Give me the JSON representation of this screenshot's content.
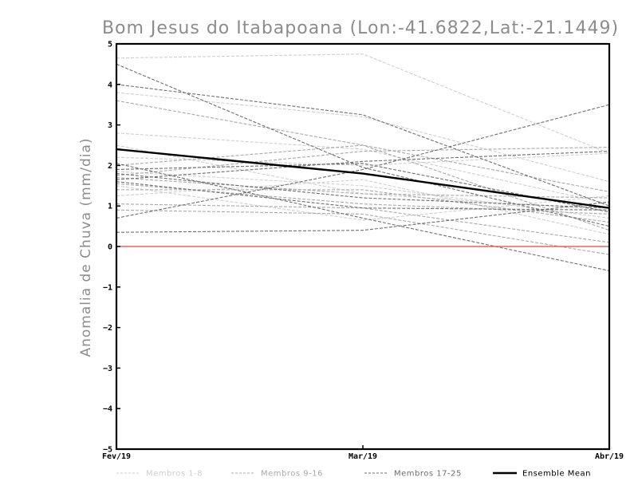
{
  "chart_data": {
    "type": "line",
    "title": "Bom Jesus do Itabapoana (Lon:-41.6822,Lat:-21.1449)",
    "xlabel": "",
    "ylabel": "Anomalia de Chuva (mm/dia)",
    "categories": [
      "Fev/19",
      "Mar/19",
      "Abr/19"
    ],
    "ylim": [
      -5,
      5
    ],
    "yticks": [
      -5,
      -4,
      -3,
      -2,
      -1,
      0,
      1,
      2,
      3,
      4,
      5
    ],
    "grid": false,
    "zero_line_color": "#e8443a",
    "legend_position": "bottom",
    "legend": [
      {
        "label": "Membros 1-8",
        "color": "#cfcfcf",
        "style": "dashed"
      },
      {
        "label": "Membros 9-16",
        "color": "#a8a8a8",
        "style": "dashed"
      },
      {
        "label": "Membros 17-25",
        "color": "#6e6e6e",
        "style": "dashed"
      },
      {
        "label": "Ensemble Mean",
        "color": "#000000",
        "style": "solid"
      }
    ],
    "series": [
      {
        "group": "Membros 1-8",
        "values": [
          4.65,
          4.75,
          2.3
        ]
      },
      {
        "group": "Membros 1-8",
        "values": [
          3.8,
          3.2,
          1.6
        ]
      },
      {
        "group": "Membros 1-8",
        "values": [
          2.8,
          2.4,
          1.05
        ]
      },
      {
        "group": "Membros 1-8",
        "values": [
          2.5,
          1.3,
          0.9
        ]
      },
      {
        "group": "Membros 1-8",
        "values": [
          2.2,
          2.0,
          2.3
        ]
      },
      {
        "group": "Membros 1-8",
        "values": [
          1.85,
          1.5,
          0.7
        ]
      },
      {
        "group": "Membros 1-8",
        "values": [
          1.5,
          0.65,
          1.25
        ]
      },
      {
        "group": "Membros 1-8",
        "values": [
          1.25,
          1.65,
          0.3
        ]
      },
      {
        "group": "Membros 9-16",
        "values": [
          3.6,
          2.5,
          0.4
        ]
      },
      {
        "group": "Membros 9-16",
        "values": [
          2.0,
          2.5,
          1.35
        ]
      },
      {
        "group": "Membros 9-16",
        "values": [
          1.75,
          2.35,
          2.45
        ]
      },
      {
        "group": "Membros 9-16",
        "values": [
          1.7,
          1.3,
          1.2
        ]
      },
      {
        "group": "Membros 9-16",
        "values": [
          1.55,
          1.05,
          0.8
        ]
      },
      {
        "group": "Membros 9-16",
        "values": [
          1.4,
          1.4,
          0.6
        ]
      },
      {
        "group": "Membros 9-16",
        "values": [
          1.05,
          0.95,
          0.1
        ]
      },
      {
        "group": "Membros 9-16",
        "values": [
          0.9,
          0.8,
          -0.2
        ]
      },
      {
        "group": "Membros 17-25",
        "values": [
          4.5,
          1.95,
          0.5
        ]
      },
      {
        "group": "Membros 17-25",
        "values": [
          4.0,
          3.25,
          1.0
        ]
      },
      {
        "group": "Membros 17-25",
        "values": [
          1.9,
          2.05,
          0.85
        ]
      },
      {
        "group": "Membros 17-25",
        "values": [
          1.65,
          2.1,
          2.35
        ]
      },
      {
        "group": "Membros 17-25",
        "values": [
          2.05,
          0.7,
          -0.6
        ]
      },
      {
        "group": "Membros 17-25",
        "values": [
          1.8,
          1.2,
          0.95
        ]
      },
      {
        "group": "Membros 17-25",
        "values": [
          1.6,
          0.95,
          0.9
        ]
      },
      {
        "group": "Membros 17-25",
        "values": [
          0.7,
          1.9,
          3.5
        ]
      },
      {
        "group": "Membros 17-25",
        "values": [
          0.35,
          0.4,
          1.1
        ]
      },
      {
        "group": "Ensemble Mean",
        "values": [
          2.4,
          1.8,
          0.95
        ]
      }
    ]
  }
}
